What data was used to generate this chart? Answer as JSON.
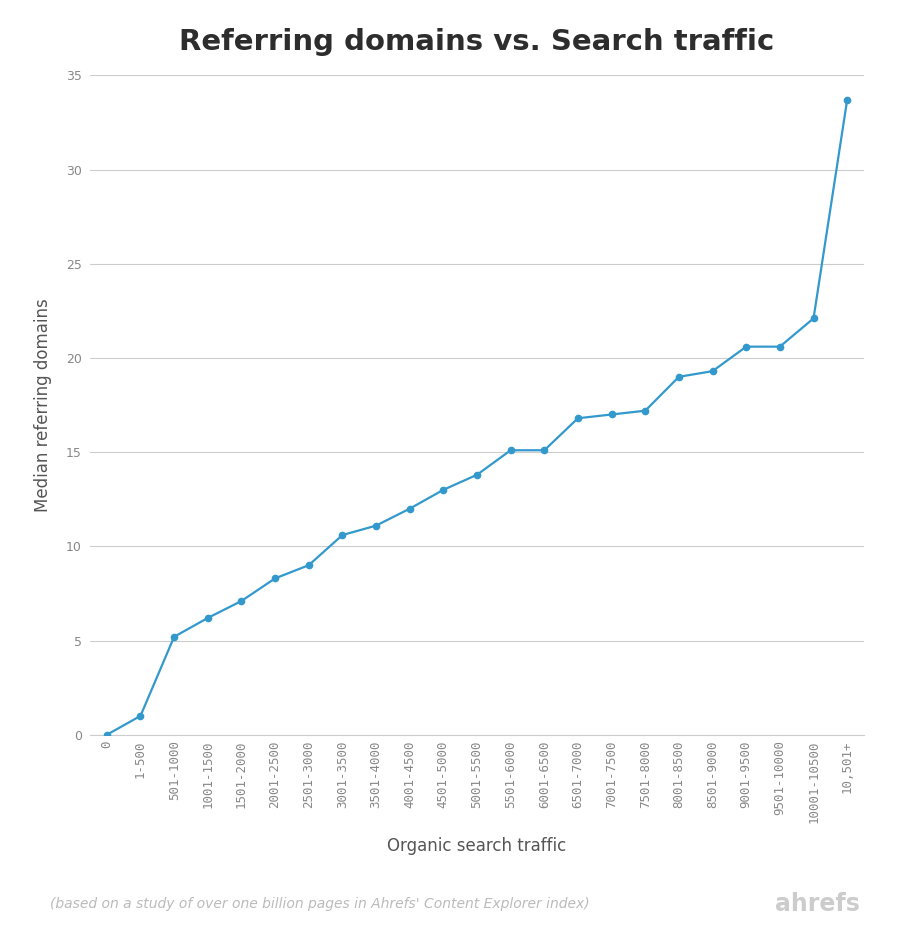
{
  "title": "Referring domains vs. Search traffic",
  "xlabel": "Organic search traffic",
  "ylabel": "Median referring domains",
  "footnote": "(based on a study of over one billion pages in Ahrefs' Content Explorer index)",
  "brand": "ahrefs",
  "x_labels": [
    "0",
    "1-500",
    "501-1000",
    "1001-1500",
    "1501-2000",
    "2001-2500",
    "2501-3000",
    "3001-3500",
    "3501-4000",
    "4001-4500",
    "4501-5000",
    "5001-5500",
    "5501-6000",
    "6001-6500",
    "6501-7000",
    "7001-7500",
    "7501-8000",
    "8001-8500",
    "8501-9000",
    "9001-9500",
    "9501-10000",
    "10001-10500",
    "10,501+"
  ],
  "y_values": [
    0,
    1,
    5.2,
    6.2,
    7.1,
    8.3,
    9.0,
    10.6,
    11.1,
    12.0,
    13.0,
    13.8,
    15.1,
    15.1,
    16.8,
    17.0,
    17.2,
    19.0,
    19.3,
    20.6,
    20.6,
    22.1,
    33.7
  ],
  "line_color": "#3399cc",
  "marker_color": "#3399cc",
  "background_color": "#ffffff",
  "grid_color": "#cccccc",
  "title_color": "#2d2d2d",
  "label_color": "#555555",
  "tick_color": "#888888",
  "footnote_color": "#bbbbbb",
  "brand_color": "#cccccc",
  "ylim": [
    0,
    35
  ],
  "yticks": [
    0,
    5,
    10,
    15,
    20,
    25,
    30,
    35
  ],
  "title_fontsize": 21,
  "label_fontsize": 12,
  "tick_fontsize": 9,
  "footnote_fontsize": 10,
  "brand_fontsize": 17
}
